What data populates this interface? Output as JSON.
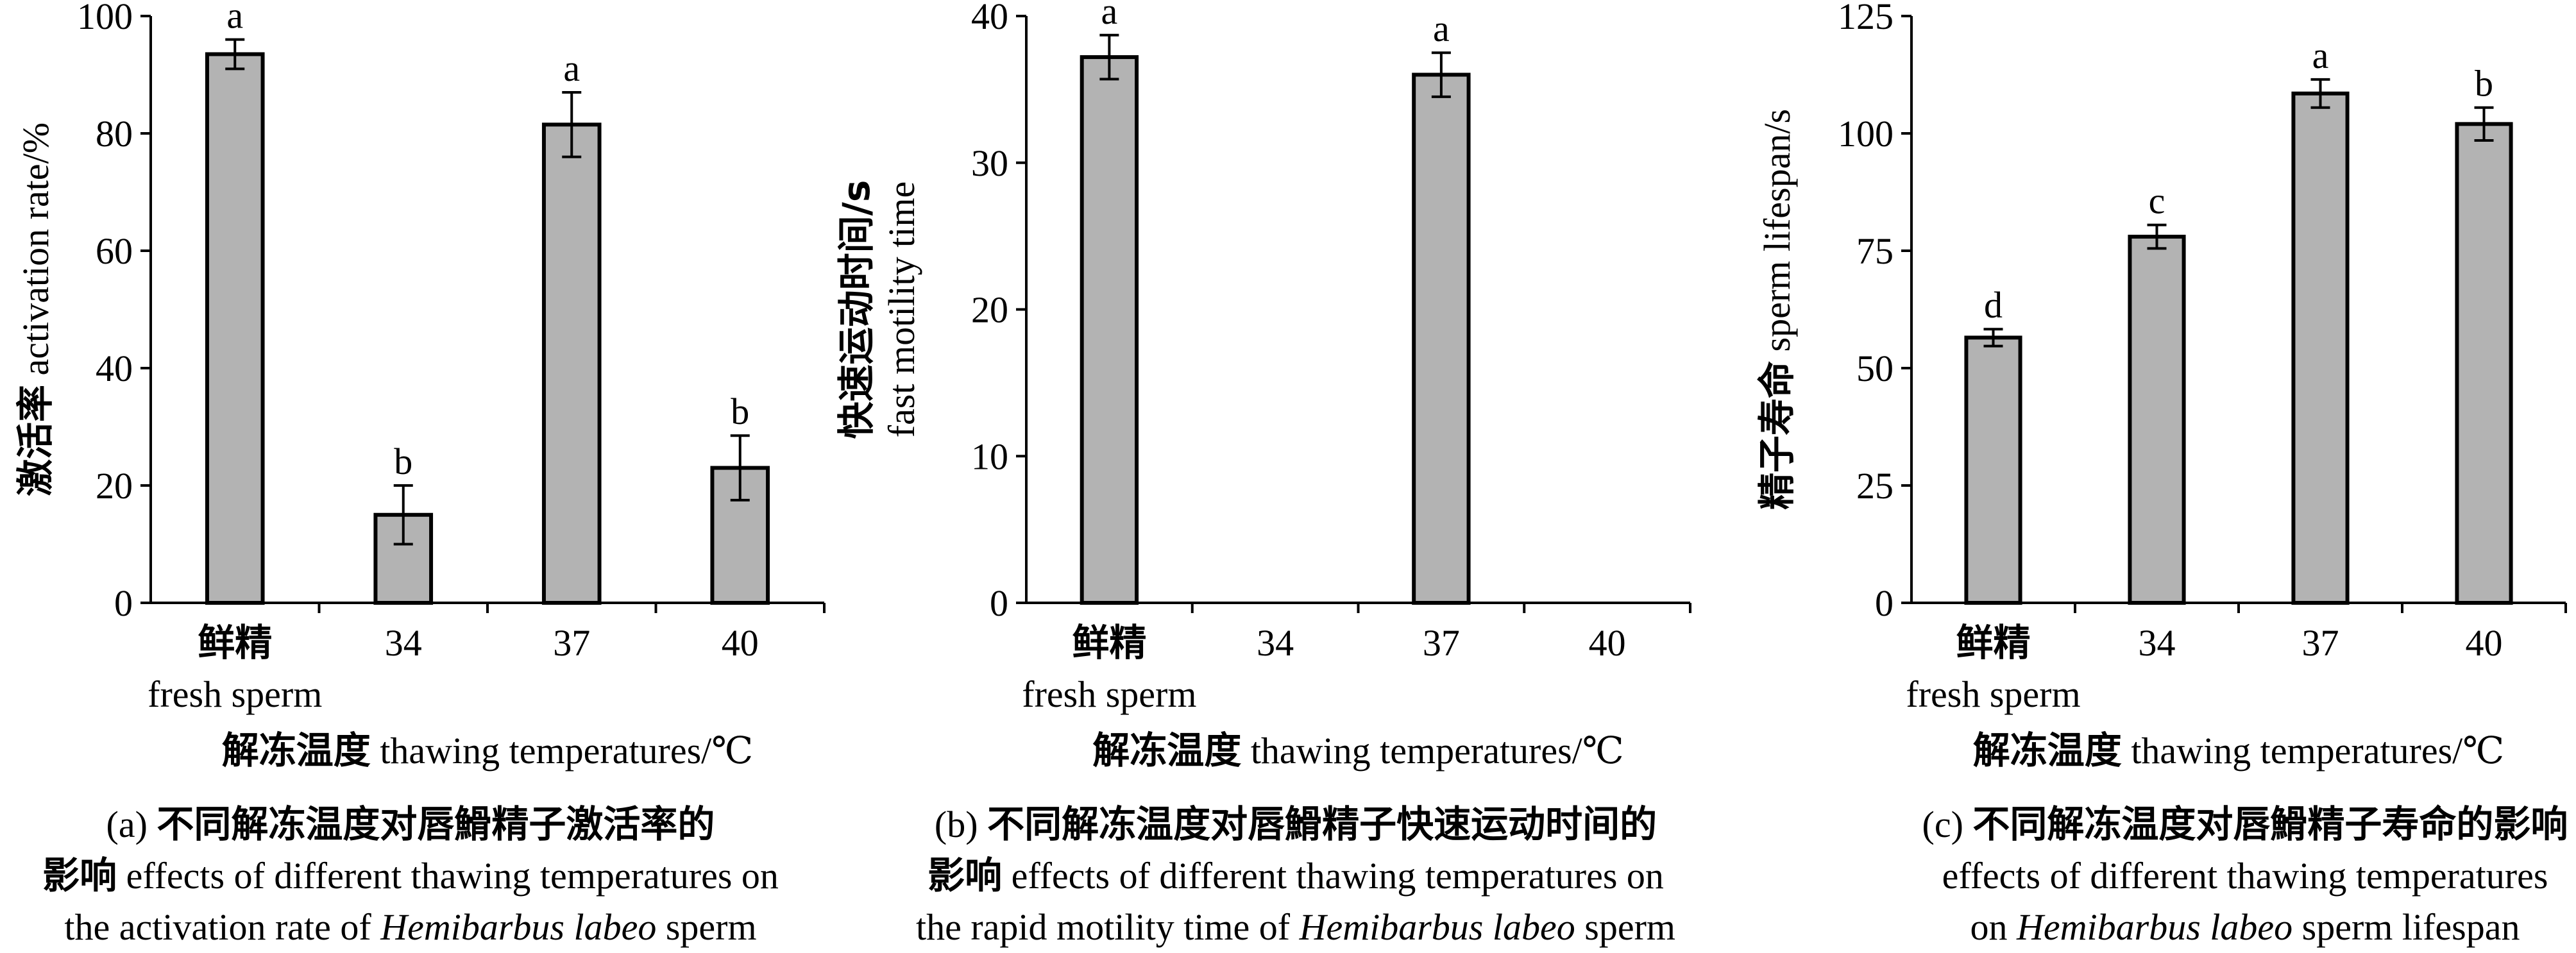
{
  "colors": {
    "bar_fill": "#b3b3b3",
    "stroke": "#000000",
    "background": "#ffffff"
  },
  "chart_data": [
    {
      "type": "bar",
      "panel": "a",
      "categories": [
        "鲜精|fresh sperm",
        "34",
        "37",
        "40"
      ],
      "values": [
        93.5,
        15.0,
        81.5,
        23.0
      ],
      "errors": [
        2.5,
        5.0,
        5.5,
        5.5
      ],
      "significance": [
        "a",
        "b",
        "a",
        "b"
      ],
      "ylim": [
        0,
        100
      ],
      "yticks": [
        0,
        20,
        40,
        60,
        80,
        100
      ],
      "ylabel_cn": "激活率",
      "ylabel_en": " activation rate/%",
      "xlabel_cn": "解冻温度",
      "xlabel_en": " thawing temperatures/℃",
      "caption": [
        {
          "en": "(a) ",
          "cn": "不同解冻温度对唇䱻精子激活率的"
        },
        {
          "cn": "影响",
          "en": " effects of different thawing temperatures on"
        },
        {
          "en": "the activation rate of ",
          "it": "Hemibarbus labeo",
          "en2": " sperm"
        }
      ]
    },
    {
      "type": "bar",
      "panel": "b",
      "categories": [
        "鲜精|fresh sperm",
        "34",
        "37",
        "40"
      ],
      "values": [
        37.2,
        null,
        36.0,
        null
      ],
      "errors": [
        1.5,
        null,
        1.5,
        null
      ],
      "significance": [
        "a",
        "",
        "a",
        ""
      ],
      "ylim": [
        0,
        40
      ],
      "yticks": [
        0,
        10,
        20,
        30,
        40
      ],
      "ylabel_cn": "快速运动时间/s",
      "ylabel_en": "fast motility time",
      "xlabel_cn": "解冻温度",
      "xlabel_en": " thawing temperatures/℃",
      "caption": [
        {
          "en": "(b) ",
          "cn": "不同解冻温度对唇䱻精子快速运动时间的"
        },
        {
          "cn": "影响",
          "en": " effects of different thawing temperatures on"
        },
        {
          "en": "the rapid motility time of ",
          "it": "Hemibarbus labeo",
          "en2": " sperm"
        }
      ]
    },
    {
      "type": "bar",
      "panel": "c",
      "categories": [
        "鲜精|fresh sperm",
        "34",
        "37",
        "40"
      ],
      "values": [
        56.5,
        78.0,
        108.5,
        102.0
      ],
      "errors": [
        1.8,
        2.5,
        3.0,
        3.5
      ],
      "significance": [
        "d",
        "c",
        "a",
        "b"
      ],
      "ylim": [
        0,
        125
      ],
      "yticks": [
        0,
        25,
        50,
        75,
        100,
        125
      ],
      "ylabel_cn": "精子寿命",
      "ylabel_en": " sperm lifespan/s",
      "xlabel_cn": "解冻温度",
      "xlabel_en": " thawing temperatures/℃",
      "caption": [
        {
          "en": "(c) ",
          "cn": "不同解冻温度对唇䱻精子寿命的影响"
        },
        {
          "en": "effects of different thawing temperatures"
        },
        {
          "en": "on ",
          "it": "Hemibarbus labeo",
          "en2": " sperm lifespan"
        }
      ]
    }
  ]
}
